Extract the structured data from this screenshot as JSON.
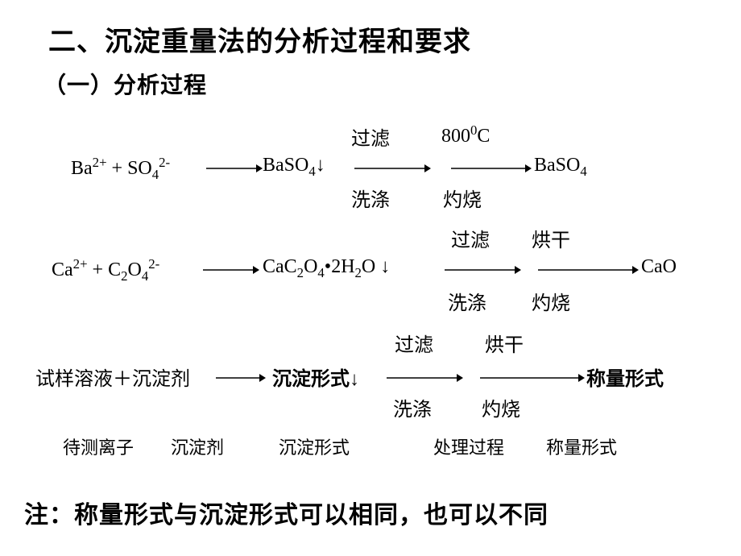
{
  "title": "二、沉淀重量法的分析过程和要求",
  "subtitle": "（一）分析过程",
  "row1": {
    "reactants": "Ba<sup>2+</sup> + SO<sub>4</sub><sup>2-</sup>",
    "precipitate": "BaSO<sub>4</sub>↓",
    "weigh_form": "BaSO<sub>4</sub>",
    "top1": "过滤",
    "top2": "800<sup>0</sup>C",
    "bot1": "洗涤",
    "bot2": "灼烧"
  },
  "row2": {
    "reactants": "Ca<sup>2+</sup> + C<sub>2</sub>O<sub>4</sub><sup>2-</sup>",
    "precipitate": "CaC<sub>2</sub>O<sub>4</sub>•2H<sub>2</sub>O ↓",
    "weigh_form": "CaO",
    "top1": "过滤",
    "top2": "烘干",
    "bot1": "洗涤",
    "bot2": "灼烧"
  },
  "row3": {
    "reactants": "试样溶液＋沉淀剂",
    "precipitate": "沉淀形式↓",
    "weigh_form": "称量形式",
    "top1": "过滤",
    "top2": "烘干",
    "bot1": "洗涤",
    "bot2": "灼烧"
  },
  "labels": {
    "l1": "待测离子",
    "l2": "沉淀剂",
    "l3": "沉淀形式",
    "l4": "处理过程",
    "l5": "称量形式"
  },
  "note": "注：称量形式与沉淀形式可以相同，也可以不同",
  "colors": {
    "text": "#000000",
    "bg": "#ffffff",
    "arrow": "#000000"
  },
  "arrow_stroke_width": 1.5
}
